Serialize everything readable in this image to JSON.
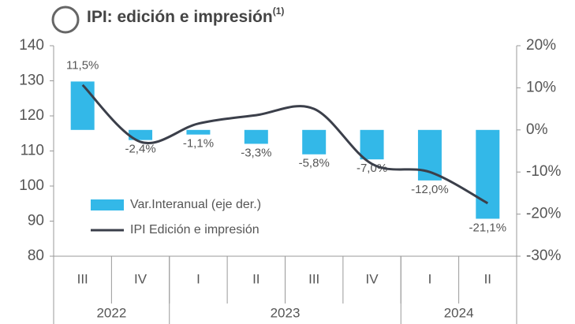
{
  "chart_data": {
    "type": "bar-line",
    "title": "IPI: edición e impresión",
    "title_note": "(1)",
    "categories": [
      "III",
      "IV",
      "I",
      "II",
      "III",
      "IV",
      "I",
      "II"
    ],
    "x_groups": [
      {
        "label": "2022",
        "count": 2
      },
      {
        "label": "2023",
        "count": 4
      },
      {
        "label": "2024",
        "count": 2
      }
    ],
    "series": [
      {
        "name": "Var.Interanual (eje der.)",
        "type": "bar",
        "axis": "y2",
        "color": "#33b8e8",
        "values": [
          11.5,
          -2.4,
          -1.1,
          -3.3,
          -5.8,
          -7.0,
          -12.0,
          -21.1
        ],
        "value_labels": [
          "11,5%",
          "-2,4%",
          "-1,1%",
          "-3,3%",
          "-5,8%",
          "-7,0%",
          "-12,0%",
          "-21,1%"
        ]
      },
      {
        "name": "IPI Edición e impresión",
        "type": "line",
        "color": "#3b3f4a",
        "values": [
          128.8,
          112.6,
          117.8,
          120.2,
          122.0,
          106.3,
          104.0,
          95.1
        ]
      }
    ],
    "ylim": [
      80,
      140
    ],
    "yticks": [
      80,
      90,
      100,
      110,
      120,
      130,
      140
    ],
    "y2lim": [
      -30,
      20
    ],
    "y2ticks": [
      {
        "value": -30,
        "label": "-30%"
      },
      {
        "value": -20,
        "label": "-20%"
      },
      {
        "value": -10,
        "label": "-10%"
      },
      {
        "value": 0,
        "label": "0%"
      },
      {
        "value": 10,
        "label": "10%"
      },
      {
        "value": 20,
        "label": "20%"
      }
    ],
    "legend": "bottom-left"
  }
}
